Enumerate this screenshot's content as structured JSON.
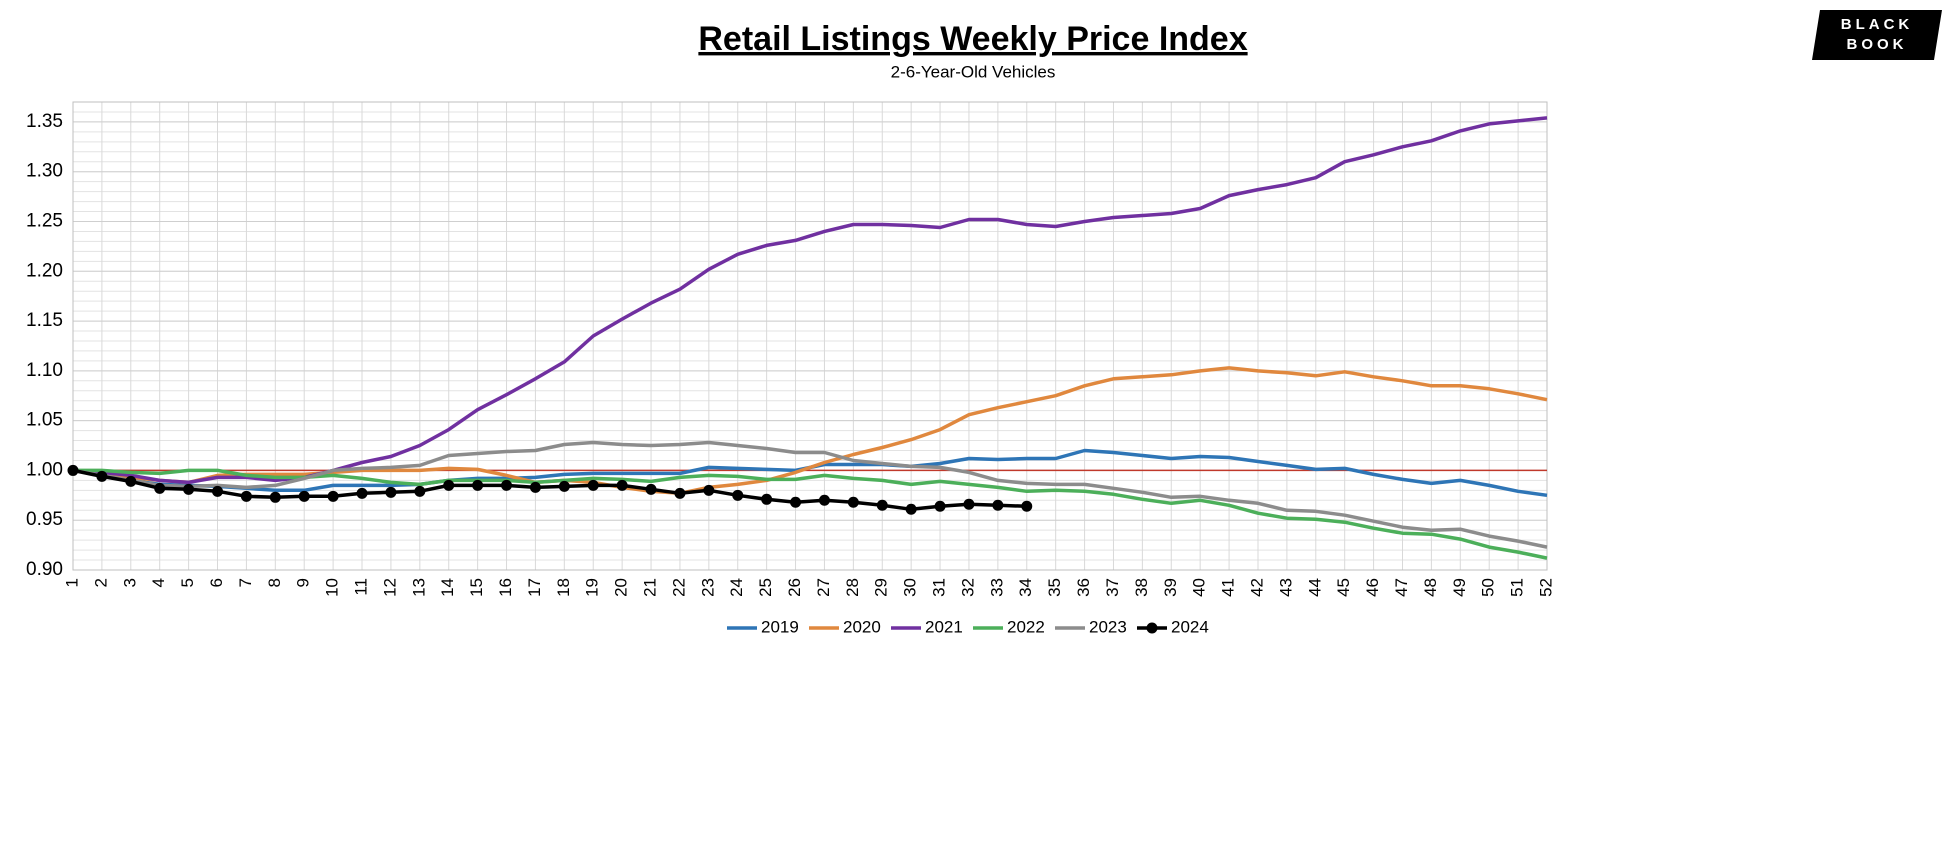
{
  "chart_data": {
    "type": "line",
    "title": "Retail Listings Weekly Price Index",
    "subtitle": "2-6-Year-Old Vehicles",
    "logo_lines": [
      "BLACK",
      "BOOK"
    ],
    "categories": [
      "1",
      "2",
      "3",
      "4",
      "5",
      "6",
      "7",
      "8",
      "9",
      "10",
      "11",
      "12",
      "13",
      "14",
      "15",
      "16",
      "17",
      "18",
      "19",
      "20",
      "21",
      "22",
      "23",
      "24",
      "25",
      "26",
      "27",
      "28",
      "29",
      "30",
      "31",
      "32",
      "33",
      "34",
      "35",
      "36",
      "37",
      "38",
      "39",
      "40",
      "41",
      "42",
      "43",
      "44",
      "45",
      "46",
      "47",
      "48",
      "49",
      "50",
      "51",
      "52"
    ],
    "ylim": [
      0.9,
      1.37
    ],
    "yticks": [
      {
        "value": 0.9,
        "label": "0.90"
      },
      0.95,
      {
        "value": 1.0,
        "label": "1.00"
      },
      1.05,
      {
        "value": 1.1,
        "label": "1.10"
      },
      1.15,
      {
        "value": 1.2,
        "label": "1.20"
      },
      1.25,
      {
        "value": 1.3,
        "label": "1.30"
      },
      1.35
    ],
    "grid": true,
    "minor_grid": 0.01,
    "reference_line": {
      "value": 1.0,
      "color": "#c0392b"
    },
    "legend": "bottom",
    "series": [
      {
        "name": "2019",
        "color": "#2e75b6",
        "values": [
          1.0,
          0.996,
          0.99,
          0.986,
          0.985,
          0.984,
          0.982,
          0.98,
          0.98,
          0.985,
          0.985,
          0.985,
          0.986,
          0.99,
          0.992,
          0.992,
          0.993,
          0.996,
          0.997,
          0.997,
          0.997,
          0.997,
          1.003,
          1.002,
          1.001,
          1.0,
          1.006,
          1.006,
          1.006,
          1.004,
          1.007,
          1.012,
          1.011,
          1.012,
          1.012,
          1.02,
          1.018,
          1.015,
          1.012,
          1.014,
          1.013,
          1.009,
          1.005,
          1.001,
          1.002,
          0.996,
          0.991,
          0.987,
          0.99,
          0.985,
          0.979,
          0.975
        ]
      },
      {
        "name": "2020",
        "color": "#e0883e",
        "values": [
          1.0,
          0.997,
          0.993,
          0.99,
          0.988,
          0.995,
          0.996,
          0.996,
          0.996,
          0.998,
          1.0,
          1.0,
          1.0,
          1.002,
          1.001,
          0.995,
          0.988,
          0.99,
          0.988,
          0.983,
          0.979,
          0.977,
          0.983,
          0.986,
          0.99,
          0.998,
          1.008,
          1.016,
          1.023,
          1.031,
          1.041,
          1.056,
          1.063,
          1.069,
          1.075,
          1.085,
          1.092,
          1.094,
          1.096,
          1.1,
          1.103,
          1.1,
          1.098,
          1.095,
          1.099,
          1.094,
          1.09,
          1.085,
          1.085,
          1.082,
          1.077,
          1.071
        ]
      },
      {
        "name": "2021",
        "color": "#7030a0",
        "values": [
          1.0,
          0.998,
          0.995,
          0.99,
          0.988,
          0.993,
          0.993,
          0.99,
          0.993,
          1.0,
          1.008,
          1.014,
          1.025,
          1.041,
          1.061,
          1.076,
          1.092,
          1.109,
          1.135,
          1.152,
          1.168,
          1.182,
          1.202,
          1.217,
          1.226,
          1.231,
          1.24,
          1.247,
          1.247,
          1.246,
          1.244,
          1.252,
          1.252,
          1.247,
          1.245,
          1.25,
          1.254,
          1.256,
          1.258,
          1.263,
          1.276,
          1.282,
          1.287,
          1.294,
          1.31,
          1.317,
          1.325,
          1.331,
          1.341,
          1.348,
          1.351,
          1.354
        ]
      },
      {
        "name": "2022",
        "color": "#4caf5a",
        "values": [
          1.0,
          1.0,
          0.998,
          0.997,
          1.0,
          1.0,
          0.995,
          0.993,
          0.993,
          0.995,
          0.992,
          0.988,
          0.986,
          0.99,
          0.99,
          0.99,
          0.988,
          0.99,
          0.992,
          0.991,
          0.989,
          0.993,
          0.995,
          0.994,
          0.991,
          0.991,
          0.995,
          0.992,
          0.99,
          0.986,
          0.989,
          0.986,
          0.983,
          0.979,
          0.98,
          0.979,
          0.976,
          0.971,
          0.967,
          0.97,
          0.965,
          0.957,
          0.952,
          0.951,
          0.948,
          0.942,
          0.937,
          0.936,
          0.931,
          0.923,
          0.918,
          0.912
        ]
      },
      {
        "name": "2023",
        "color": "#8c8c8c",
        "values": [
          1.0,
          0.995,
          0.99,
          0.985,
          0.984,
          0.985,
          0.983,
          0.985,
          0.992,
          1.0,
          1.002,
          1.003,
          1.005,
          1.015,
          1.017,
          1.019,
          1.02,
          1.026,
          1.028,
          1.026,
          1.025,
          1.026,
          1.028,
          1.025,
          1.022,
          1.018,
          1.018,
          1.01,
          1.007,
          1.004,
          1.003,
          0.998,
          0.99,
          0.987,
          0.986,
          0.986,
          0.982,
          0.978,
          0.973,
          0.974,
          0.97,
          0.967,
          0.96,
          0.959,
          0.955,
          0.949,
          0.943,
          0.94,
          0.941,
          0.934,
          0.929,
          0.923
        ]
      },
      {
        "name": "2024",
        "color": "#000000",
        "markers": true,
        "values": [
          1.0,
          0.994,
          0.989,
          0.982,
          0.981,
          0.979,
          0.974,
          0.973,
          0.974,
          0.974,
          0.977,
          0.978,
          0.979,
          0.985,
          0.985,
          0.985,
          0.983,
          0.984,
          0.985,
          0.985,
          0.981,
          0.977,
          0.98,
          0.975,
          0.971,
          0.968,
          0.97,
          0.968,
          0.965,
          0.961,
          0.964,
          0.966,
          0.965,
          0.964,
          null,
          null,
          null,
          null,
          null,
          null,
          null,
          null,
          null,
          null,
          null,
          null,
          null,
          null,
          null,
          null,
          null,
          null
        ]
      }
    ]
  }
}
